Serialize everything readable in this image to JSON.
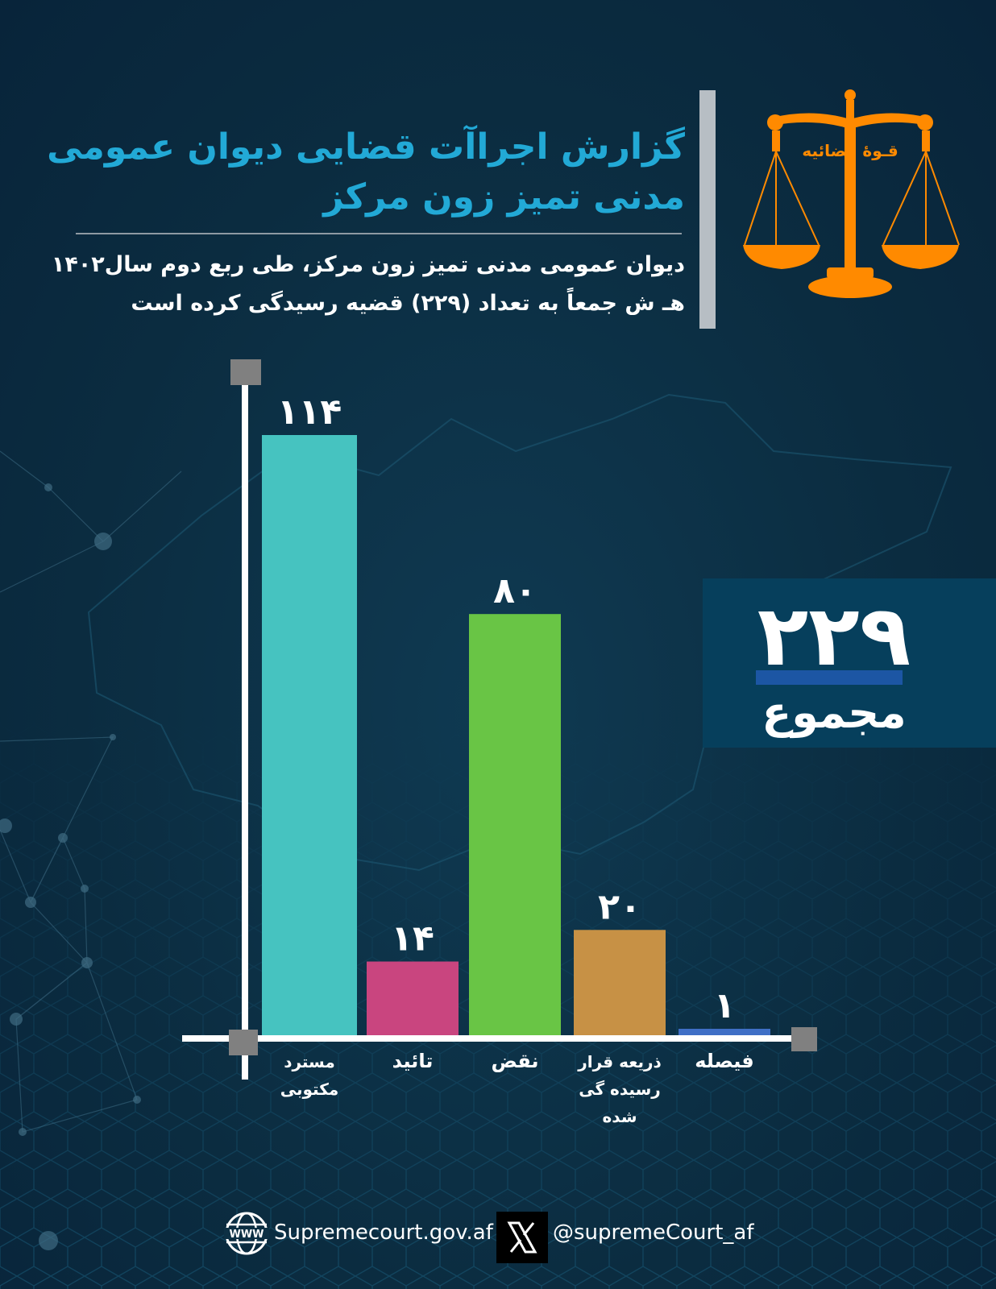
{
  "header": {
    "title": "گزارش اجراآت قضایی دیوان عمومی مدنی تمیز زون مرکز",
    "subtitle": "دیوان عمومی مدنی  تمیز زون مرکز، طی ربع دوم سال۱۴۰۲ هـ ش جمعاً به تعداد (۲۲۹) قضیه رسیدگی کرده است"
  },
  "logo": {
    "icon": "scales-of-justice-icon",
    "text": "قـوهٔ قضائیه",
    "color": "#ff8a00"
  },
  "total": {
    "value": "۲۲۹",
    "label": "مجموع"
  },
  "chart_data": {
    "type": "bar",
    "categories": [
      "مسترد مکتوبی",
      "تائید",
      "نقض",
      "ذریعه قرار رسیده گی شده",
      "فیصله"
    ],
    "values": [
      114,
      14,
      80,
      20,
      1
    ],
    "data_labels": [
      "۱۱۴",
      "۱۴",
      "۸۰",
      "۲۰",
      "۱"
    ],
    "colors": [
      "#46c3c0",
      "#c9457f",
      "#69c545",
      "#c79145",
      "#3f6fc6"
    ],
    "title": "",
    "xlabel": "",
    "ylabel": "",
    "ylim": [
      0,
      114
    ],
    "grid": false,
    "legend": "none"
  },
  "footer": {
    "globe_icon_text": "WWW",
    "website": "Supremecourt.gov.af",
    "x_icon": "x-logo-icon",
    "handle": "@supremeCourt_af"
  }
}
